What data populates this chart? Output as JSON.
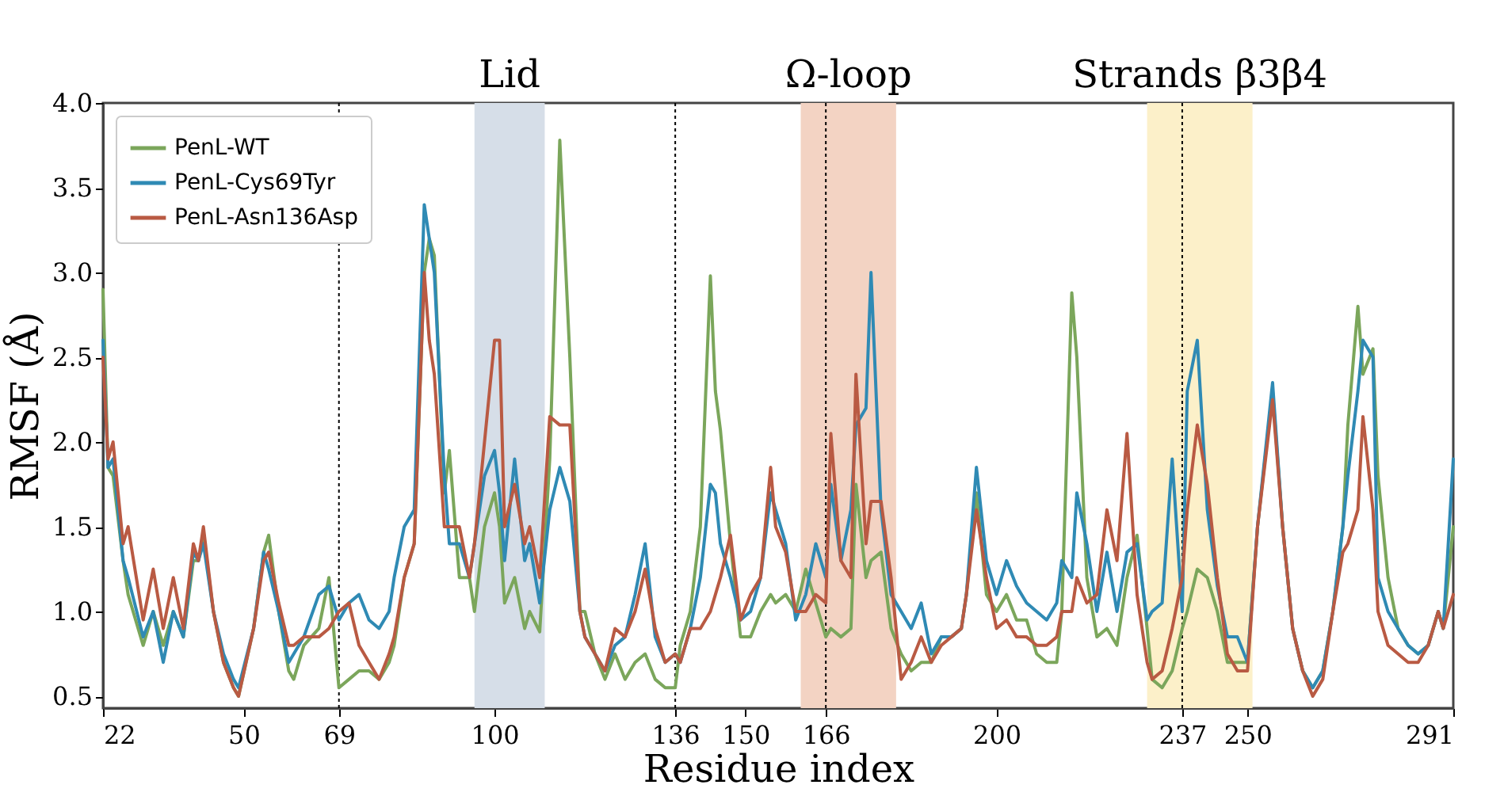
{
  "chart_data": {
    "type": "line",
    "xlabel": "Residue index",
    "ylabel": "RMSF (Å)",
    "x": [
      22,
      23,
      24,
      26,
      27,
      30,
      32,
      34,
      36,
      38,
      40,
      41,
      42,
      44,
      46,
      48,
      49,
      52,
      54,
      55,
      57,
      59,
      60,
      62,
      65,
      67,
      69,
      71,
      73,
      75,
      77,
      79,
      80,
      82,
      84,
      86,
      87,
      88,
      90,
      91,
      93,
      95,
      96,
      98,
      100,
      101,
      102,
      104,
      106,
      107,
      109,
      111,
      113,
      115,
      117,
      118,
      120,
      122,
      124,
      126,
      128,
      130,
      132,
      134,
      136,
      137,
      139,
      141,
      143,
      144,
      145,
      147,
      149,
      151,
      153,
      155,
      156,
      158,
      160,
      162,
      164,
      166,
      167,
      169,
      171,
      172,
      174,
      175,
      177,
      179,
      181,
      183,
      185,
      187,
      189,
      191,
      193,
      194,
      196,
      198,
      200,
      202,
      204,
      206,
      208,
      210,
      212,
      213,
      215,
      216,
      218,
      220,
      222,
      224,
      226,
      228,
      230,
      231,
      233,
      235,
      237,
      238,
      240,
      242,
      244,
      246,
      248,
      250,
      252,
      255,
      257,
      259,
      261,
      263,
      265,
      267,
      269,
      270,
      272,
      273,
      275,
      276,
      278,
      280,
      282,
      284,
      286,
      288,
      289,
      291
    ],
    "series": [
      {
        "name": "PenL-WT",
        "color": "#7ba65b",
        "values": [
          2.9,
          1.85,
          1.8,
          1.3,
          1.1,
          0.8,
          1.0,
          0.8,
          1.0,
          0.85,
          1.3,
          1.3,
          1.45,
          1.0,
          0.7,
          0.55,
          0.5,
          0.9,
          1.35,
          1.45,
          1.0,
          0.65,
          0.6,
          0.8,
          0.9,
          1.2,
          0.55,
          0.6,
          0.65,
          0.65,
          0.6,
          0.7,
          0.8,
          1.2,
          1.4,
          3.0,
          3.2,
          3.1,
          1.7,
          1.95,
          1.2,
          1.2,
          1.0,
          1.5,
          1.7,
          1.5,
          1.05,
          1.2,
          0.9,
          1.0,
          0.88,
          1.9,
          3.78,
          2.5,
          1.0,
          1.0,
          0.75,
          0.6,
          0.75,
          0.6,
          0.7,
          0.75,
          0.6,
          0.55,
          0.55,
          0.8,
          1.0,
          1.5,
          2.98,
          2.3,
          2.07,
          1.4,
          0.85,
          0.85,
          1.0,
          1.1,
          1.05,
          1.1,
          1.0,
          1.25,
          1.05,
          0.85,
          0.9,
          0.85,
          0.9,
          1.75,
          1.2,
          1.3,
          1.35,
          0.9,
          0.75,
          0.65,
          0.7,
          0.7,
          0.85,
          0.85,
          0.9,
          1.1,
          1.7,
          1.1,
          1.0,
          1.1,
          0.95,
          0.95,
          0.75,
          0.7,
          0.7,
          1.0,
          2.88,
          2.5,
          1.2,
          0.85,
          0.9,
          0.8,
          1.2,
          1.45,
          0.9,
          0.6,
          0.55,
          0.65,
          0.9,
          1.0,
          1.25,
          1.2,
          1.0,
          0.7,
          0.7,
          0.7,
          1.5,
          2.3,
          1.5,
          0.9,
          0.65,
          0.55,
          0.65,
          1.0,
          1.5,
          2.1,
          2.8,
          2.4,
          2.55,
          1.8,
          1.2,
          0.9,
          0.8,
          0.75,
          0.8,
          1.0,
          0.9,
          1.5
        ]
      },
      {
        "name": "PenL-Cys69Tyr",
        "color": "#2f8ab4",
        "values": [
          2.6,
          1.85,
          1.9,
          1.3,
          1.2,
          0.85,
          1.0,
          0.7,
          1.0,
          0.85,
          1.35,
          1.3,
          1.4,
          1.0,
          0.75,
          0.6,
          0.55,
          0.9,
          1.35,
          1.25,
          1.0,
          0.7,
          0.75,
          0.85,
          1.1,
          1.15,
          0.95,
          1.05,
          1.1,
          0.95,
          0.9,
          1.0,
          1.2,
          1.5,
          1.6,
          3.4,
          3.2,
          3.0,
          1.8,
          1.4,
          1.4,
          1.2,
          1.4,
          1.8,
          1.95,
          1.7,
          1.3,
          1.9,
          1.3,
          1.4,
          1.05,
          1.6,
          1.85,
          1.65,
          1.0,
          0.85,
          0.75,
          0.65,
          0.8,
          0.85,
          1.1,
          1.4,
          0.85,
          0.7,
          0.75,
          0.7,
          0.9,
          1.2,
          1.75,
          1.7,
          1.4,
          1.2,
          0.95,
          1.0,
          1.2,
          1.7,
          1.6,
          1.4,
          0.95,
          1.1,
          1.4,
          1.2,
          1.75,
          1.3,
          1.6,
          2.1,
          2.2,
          3.0,
          1.6,
          1.1,
          1.0,
          0.9,
          1.05,
          0.75,
          0.85,
          0.85,
          0.9,
          1.1,
          1.85,
          1.3,
          1.1,
          1.3,
          1.15,
          1.05,
          1.0,
          0.95,
          1.05,
          1.3,
          1.2,
          1.7,
          1.4,
          1.0,
          1.35,
          1.0,
          1.35,
          1.4,
          0.95,
          1.0,
          1.05,
          1.9,
          1.0,
          2.3,
          2.6,
          1.6,
          1.15,
          0.85,
          0.85,
          0.7,
          1.5,
          2.35,
          1.5,
          0.9,
          0.65,
          0.55,
          0.65,
          1.0,
          1.5,
          1.8,
          2.3,
          2.6,
          2.5,
          1.2,
          1.0,
          0.9,
          0.8,
          0.75,
          0.8,
          1.0,
          0.9,
          1.9
        ]
      },
      {
        "name": "PenL-Asn136Asp",
        "color": "#b95a43",
        "values": [
          2.5,
          1.9,
          2.0,
          1.4,
          1.5,
          0.95,
          1.25,
          0.9,
          1.2,
          0.9,
          1.4,
          1.3,
          1.5,
          1.0,
          0.7,
          0.55,
          0.5,
          0.9,
          1.3,
          1.35,
          1.05,
          0.8,
          0.8,
          0.85,
          0.85,
          0.9,
          1.0,
          1.05,
          0.8,
          0.7,
          0.6,
          0.75,
          0.85,
          1.2,
          1.4,
          3.0,
          2.6,
          2.4,
          1.5,
          1.5,
          1.5,
          1.2,
          1.4,
          2.0,
          2.6,
          2.6,
          1.5,
          1.75,
          1.4,
          1.5,
          1.2,
          2.15,
          2.1,
          2.1,
          1.0,
          0.85,
          0.75,
          0.65,
          0.9,
          0.85,
          1.0,
          1.25,
          0.9,
          0.7,
          0.75,
          0.7,
          0.9,
          0.9,
          1.0,
          1.1,
          1.2,
          1.45,
          0.95,
          1.1,
          1.2,
          1.85,
          1.5,
          1.35,
          1.0,
          1.0,
          1.1,
          1.05,
          2.05,
          1.3,
          1.2,
          2.4,
          1.4,
          1.65,
          1.65,
          1.2,
          0.6,
          0.7,
          0.85,
          0.7,
          0.8,
          0.85,
          0.9,
          1.1,
          1.6,
          1.2,
          0.9,
          0.95,
          0.85,
          0.85,
          0.8,
          0.8,
          0.85,
          1.0,
          1.0,
          1.2,
          1.05,
          1.1,
          1.6,
          1.3,
          2.05,
          1.1,
          0.7,
          0.6,
          0.65,
          0.9,
          1.2,
          1.6,
          2.1,
          1.75,
          1.2,
          0.75,
          0.65,
          0.65,
          1.5,
          2.25,
          1.5,
          0.9,
          0.65,
          0.5,
          0.6,
          1.0,
          1.35,
          1.4,
          1.6,
          2.15,
          1.6,
          1.0,
          0.8,
          0.75,
          0.7,
          0.7,
          0.8,
          1.0,
          0.9,
          1.1
        ]
      }
    ],
    "xlim": [
      22,
      291
    ],
    "xticks": [
      22,
      50,
      69,
      100,
      136,
      150,
      166,
      200,
      237,
      250,
      291
    ],
    "ylim": [
      0.43,
      4.0
    ],
    "yticks": [
      0.5,
      {
        "value": 1,
        "label": "1.0"
      },
      1.5,
      {
        "value": 2,
        "label": "2.0"
      },
      2.5,
      {
        "value": 3,
        "label": "3.0"
      },
      3.5,
      {
        "value": 4,
        "label": "4.0"
      }
    ],
    "bands": [
      {
        "axis": "x",
        "from": 96,
        "to": 110,
        "label": "Lid",
        "color": "#d6dee8"
      },
      {
        "axis": "x",
        "from": 161,
        "to": 180,
        "label": "Ω-loop",
        "color": "#f3d3c3"
      },
      {
        "axis": "x",
        "from": 230,
        "to": 251,
        "label": "Strands β3β4",
        "color": "#fcf0c9"
      }
    ],
    "ref_lines": [
      {
        "axis": "x",
        "value": 69,
        "line_style": "dotted"
      },
      {
        "axis": "x",
        "value": 136,
        "line_style": "dotted"
      },
      {
        "axis": "x",
        "value": 166,
        "line_style": "dotted"
      },
      {
        "axis": "x",
        "value": 237,
        "line_style": "dotted"
      }
    ],
    "grid": false,
    "legend": "top left",
    "line_style": "solid"
  }
}
